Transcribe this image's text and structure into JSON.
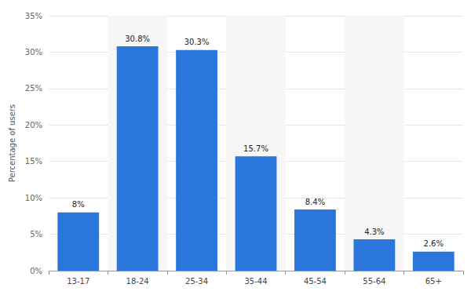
{
  "chart_data": {
    "type": "bar",
    "y_label": "Percentage of users",
    "categories": [
      "13-17",
      "18-24",
      "25-34",
      "35-44",
      "45-54",
      "55-64",
      "65+"
    ],
    "values": [
      8,
      30.8,
      30.3,
      15.7,
      8.4,
      4.3,
      2.6
    ],
    "value_labels": [
      "8%",
      "30.8%",
      "30.3%",
      "15.7%",
      "8.4%",
      "4.3%",
      "2.6%"
    ],
    "color": "#2a76dd",
    "ylim": [
      0,
      35
    ],
    "yticks": [
      {
        "value": 0,
        "label": "0%"
      },
      {
        "value": 5,
        "label": "5%"
      },
      {
        "value": 10,
        "label": "10%"
      },
      {
        "value": 15,
        "label": "15%"
      },
      {
        "value": 20,
        "label": "20%"
      },
      {
        "value": 25,
        "label": "25%"
      },
      {
        "value": 30,
        "label": "30%"
      },
      {
        "value": 35,
        "label": "35%"
      }
    ],
    "grid": true,
    "data_labels": true
  }
}
